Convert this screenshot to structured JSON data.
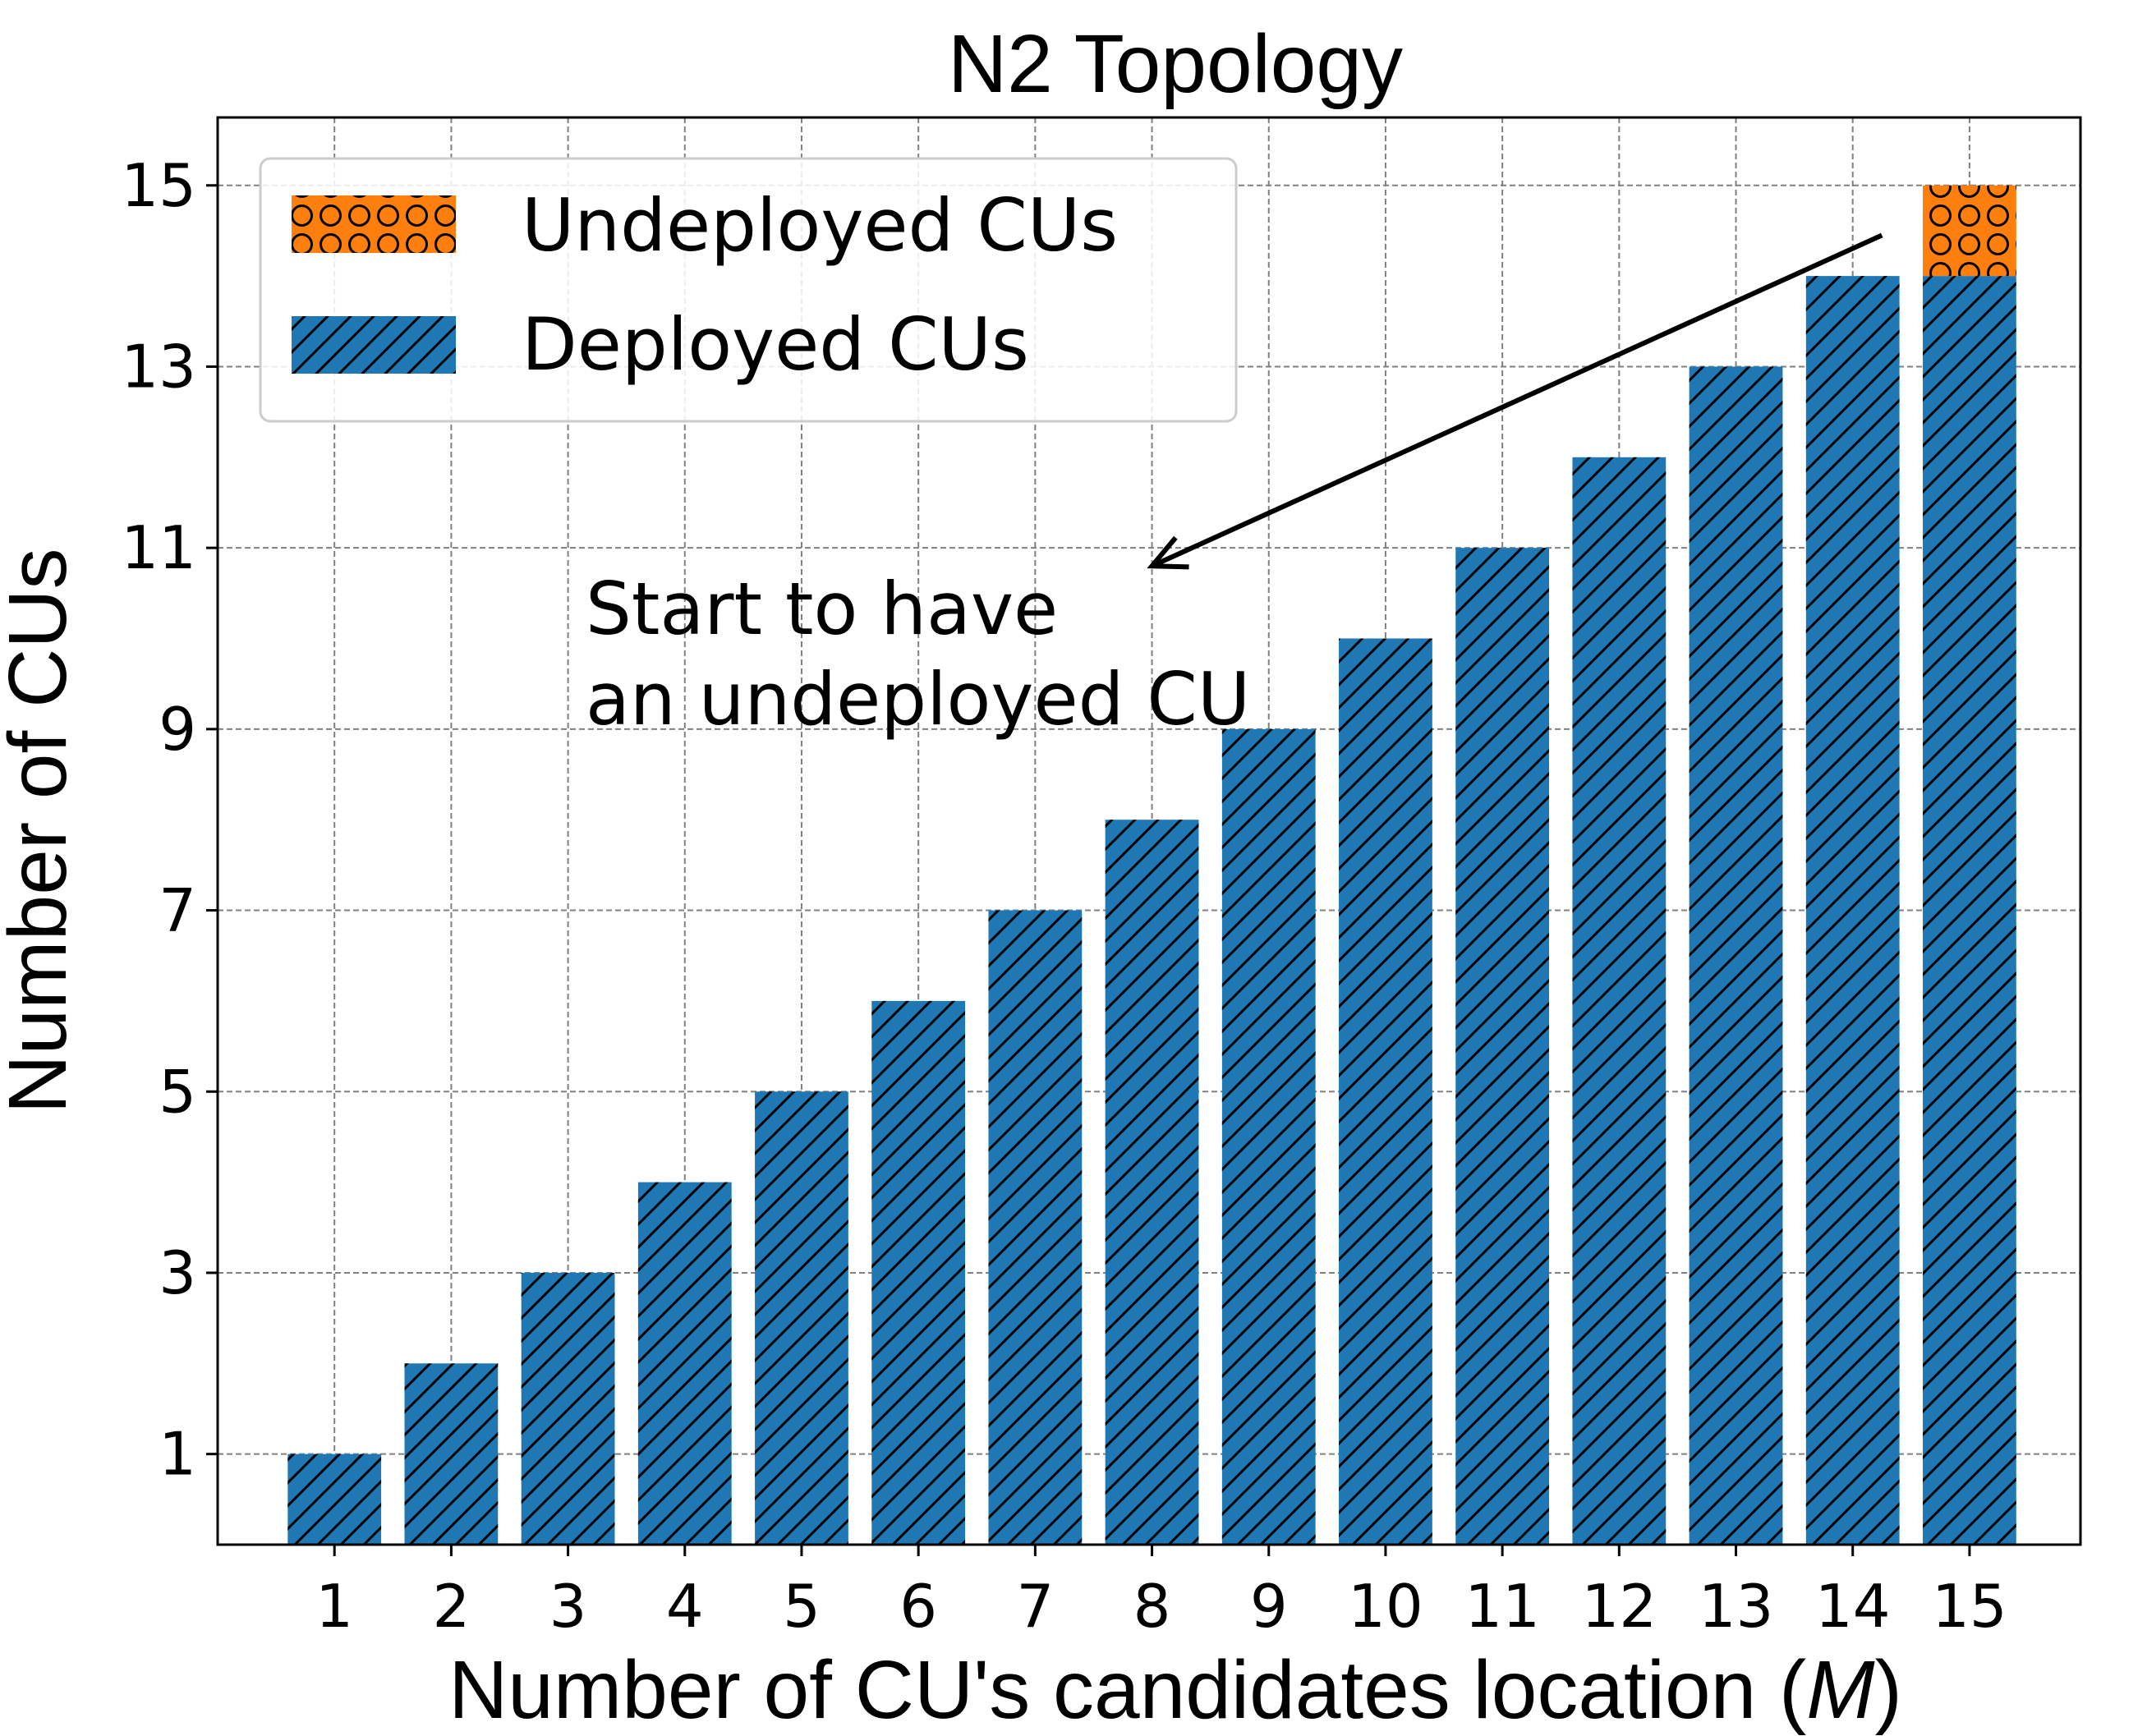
{
  "chart_data": {
    "type": "bar",
    "stacked": true,
    "title": "N2 Topology",
    "xlabel": "Number of CU's candidates location (",
    "xlabel_var": "M",
    "xlabel_end": ")",
    "ylabel": "Number of CUs",
    "categories": [
      "1",
      "2",
      "3",
      "4",
      "5",
      "6",
      "7",
      "8",
      "9",
      "10",
      "11",
      "12",
      "13",
      "14",
      "15"
    ],
    "series": [
      {
        "name": "Deployed CUs",
        "color": "#1f77b4",
        "hatch": "diagonal",
        "values": [
          1,
          2,
          3,
          4,
          5,
          6,
          7,
          8,
          9,
          10,
          11,
          12,
          13,
          14,
          14
        ]
      },
      {
        "name": "Undeployed CUs",
        "color": "#ff7f0e",
        "hatch": "circles",
        "values": [
          0,
          0,
          0,
          0,
          0,
          0,
          0,
          0,
          0,
          0,
          0,
          0,
          0,
          0,
          1
        ]
      }
    ],
    "yticks": [
      "1",
      "3",
      "5",
      "7",
      "9",
      "11",
      "13",
      "15"
    ],
    "ylim": [
      0,
      15.75
    ],
    "xlim": [
      0,
      15.95
    ],
    "grid": true,
    "legend_position": "top-left",
    "annotation": {
      "lines": [
        "Start to have",
        "an undeployed CU"
      ],
      "arrow_from": [
        14.25,
        14.45
      ],
      "arrow_to": [
        8,
        10.8
      ]
    }
  }
}
